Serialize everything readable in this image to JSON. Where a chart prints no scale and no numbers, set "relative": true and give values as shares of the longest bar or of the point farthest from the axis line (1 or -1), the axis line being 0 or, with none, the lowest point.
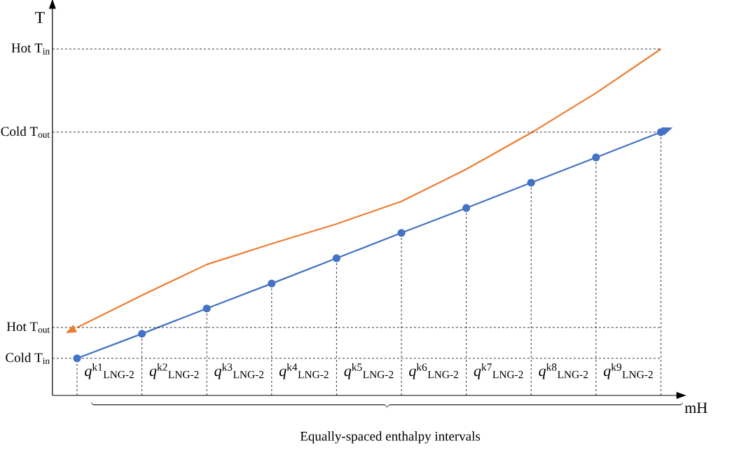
{
  "chart_data": {
    "type": "line",
    "relative": true,
    "xlabel": "mH",
    "ylabel": "T",
    "categories": [
      null,
      null,
      null,
      null,
      null,
      null,
      null,
      null,
      null,
      null
    ],
    "series": [
      {
        "color": "#ed7d31",
        "marker": "none",
        "values": [
          0.196,
          0.289,
          0.378,
          0.438,
          0.495,
          0.56,
          0.653,
          0.758,
          0.873,
          1.0
        ]
      },
      {
        "color": "#4472c4",
        "marker": "circle",
        "values": [
          0.107,
          0.178,
          0.251,
          0.323,
          0.396,
          0.469,
          0.541,
          0.614,
          0.687,
          0.76
        ]
      }
    ],
    "ref_lines": [
      {
        "axis": "y",
        "value": 1.0,
        "label": "Hot T$_{in}$",
        "line_style": "dashed"
      },
      {
        "axis": "y",
        "value": 0.76,
        "label": "Cold T$_{out}$",
        "line_style": "dashed"
      },
      {
        "axis": "y",
        "value": 0.196,
        "label": "Hot T$_{out}$",
        "line_style": "dashed"
      },
      {
        "axis": "y",
        "value": 0.107,
        "label": "Cold T$_{in}$",
        "line_style": "dashed"
      }
    ],
    "annotations": [
      "*q*$^{k1}$$_{LNG-2}$",
      "*q*$^{k2}$$_{LNG-2}$",
      "*q*$^{k3}$$_{LNG-2}$",
      "*q*$^{k4}$$_{LNG-2}$",
      "*q*$^{k5}$$_{LNG-2}$",
      "*q*$^{k6}$$_{LNG-2}$",
      "*q*$^{k7}$$_{LNG-2}$",
      "*q*$^{k8}$$_{LNG-2}$",
      "*q*$^{k9}$$_{LNG-2}$",
      "Equally-spaced enthalpy intervals"
    ],
    "line_style": "solid"
  }
}
